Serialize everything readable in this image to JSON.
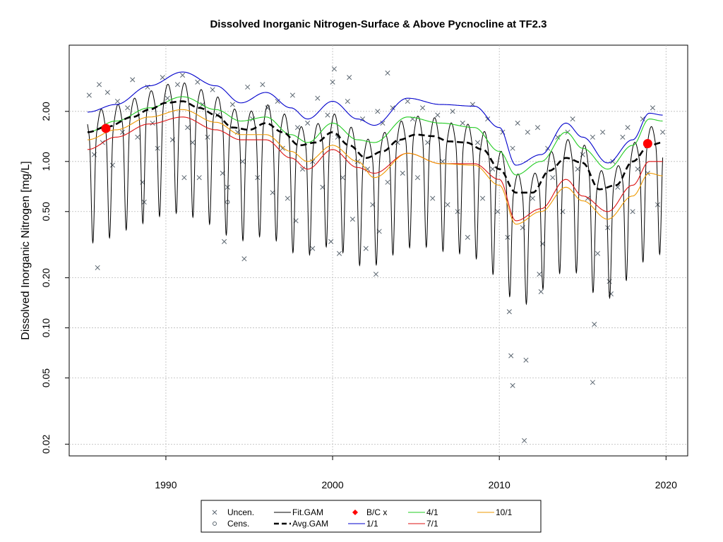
{
  "chart_data": {
    "type": "line",
    "title": "Dissolved Inorganic Nitrogen-Surface & Above Pycnocline at TF2.3",
    "xlabel": "",
    "ylabel": "Dissolved Inorganic Nitrogen [mg/L]",
    "y_scale": "log",
    "xlim": [
      1984.2,
      2021.3
    ],
    "ylim": [
      0.017,
      5.0
    ],
    "x_ticks": [
      1990,
      2000,
      2010,
      2020
    ],
    "x_tick_labels": [
      "1990",
      "2000",
      "2010",
      "2020"
    ],
    "y_ticks": [
      0.02,
      0.05,
      0.1,
      0.2,
      0.5,
      1.0,
      2.0
    ],
    "y_tick_labels": [
      "0.02",
      "0.05",
      "0.10",
      "0.20",
      "0.50",
      "1.00",
      "2.00"
    ],
    "grid": true,
    "legend_position": "bottom",
    "legend": {
      "columns": [
        [
          {
            "label": "Uncen.",
            "key": "uncen"
          },
          {
            "label": "Cens.",
            "key": "cens"
          }
        ],
        [
          {
            "label": "Fit.GAM",
            "key": "fit"
          },
          {
            "label": "Avg.GAM",
            "key": "avg"
          }
        ],
        [
          {
            "label": "B/C x",
            "key": "bc"
          },
          {
            "label": "1/1",
            "key": "d11"
          }
        ],
        [
          {
            "label": "4/1",
            "key": "d41"
          },
          {
            "label": "7/1",
            "key": "d71"
          }
        ],
        [
          {
            "label": "10/1",
            "key": "d101"
          }
        ]
      ]
    },
    "colors": {
      "points": "#5b6670",
      "fit": "#000000",
      "avg": "#000000",
      "bc": "#ff0000",
      "d11": "#0000cc",
      "d41": "#22cc22",
      "d71": "#dd1111",
      "d101": "#ee9900",
      "grid": "#bbbbbb"
    },
    "avg_gam": {
      "x": [
        1985.3,
        1986.5,
        1988,
        1989,
        1990,
        1991,
        1992,
        1993,
        1994,
        1995,
        1996,
        1997,
        1998,
        1999,
        2000,
        2001,
        2002,
        2003,
        2004,
        2005,
        2006,
        2007,
        2008,
        2009,
        2010,
        2011,
        2012,
        2013,
        2014,
        2015,
        2016,
        2017,
        2018,
        2019,
        2019.8
      ],
      "y": [
        1.5,
        1.62,
        1.85,
        2.05,
        2.25,
        2.3,
        2.1,
        1.9,
        1.6,
        1.55,
        1.7,
        1.5,
        1.25,
        1.3,
        1.5,
        1.25,
        1.05,
        1.15,
        1.35,
        1.45,
        1.42,
        1.32,
        1.3,
        1.18,
        0.9,
        0.65,
        0.65,
        0.88,
        1.05,
        0.98,
        0.68,
        0.72,
        1.0,
        1.25,
        1.3
      ]
    },
    "flow_series": [
      {
        "name": "1/1",
        "key": "d11",
        "x": [
          1985.3,
          1987,
          1989,
          1991,
          1993,
          1994.5,
          1996,
          1997.5,
          1998.5,
          2000,
          2001.5,
          2002.5,
          2004.5,
          2006.5,
          2008.5,
          2010,
          2011,
          2012.5,
          2014,
          2015,
          2016.5,
          2018,
          2019,
          2019.8
        ],
        "y": [
          1.98,
          2.2,
          2.85,
          3.45,
          2.85,
          2.25,
          2.6,
          2.1,
          1.8,
          2.3,
          1.8,
          1.65,
          2.4,
          2.2,
          2.15,
          1.6,
          0.95,
          1.1,
          1.7,
          1.4,
          0.98,
          1.35,
          1.95,
          1.9
        ]
      },
      {
        "name": "4/1",
        "key": "d41",
        "x": [
          1985.3,
          1987,
          1989,
          1991,
          1993,
          1994.5,
          1996,
          1997.5,
          1998.5,
          2000,
          2001.5,
          2002.5,
          2004.5,
          2006.5,
          2008.5,
          2010,
          2011,
          2012.5,
          2014,
          2015,
          2016.5,
          2018,
          2019,
          2019.8
        ],
        "y": [
          1.5,
          1.75,
          2.1,
          2.45,
          2.05,
          1.75,
          1.85,
          1.45,
          1.3,
          1.7,
          1.35,
          1.3,
          1.85,
          1.7,
          1.6,
          1.15,
          0.83,
          1.0,
          1.5,
          1.2,
          0.9,
          1.25,
          1.8,
          1.75
        ]
      },
      {
        "name": "7/1",
        "key": "d71",
        "x": [
          1985.3,
          1987,
          1989,
          1991,
          1993,
          1994.5,
          1996,
          1997.5,
          1998.5,
          2000,
          2001.5,
          2002.5,
          2004.5,
          2006.5,
          2008.5,
          2010,
          2011,
          2012.5,
          2014,
          2015,
          2016.5,
          2018,
          2019,
          2019.8
        ],
        "y": [
          1.18,
          1.4,
          1.68,
          1.85,
          1.55,
          1.35,
          1.35,
          1.05,
          0.9,
          1.18,
          0.92,
          0.85,
          1.12,
          0.97,
          0.97,
          0.78,
          0.44,
          0.52,
          0.78,
          0.62,
          0.5,
          0.72,
          1.0,
          1.0
        ]
      },
      {
        "name": "10/1",
        "key": "d101",
        "x": [
          1985.3,
          1987,
          1989,
          1991,
          1993,
          1994.5,
          1996,
          1997.5,
          1998.5,
          2000,
          2001.5,
          2002.5,
          2004.5,
          2006.5,
          2008.5,
          2010,
          2011,
          2012.5,
          2014,
          2015,
          2016.5,
          2018,
          2019,
          2019.8
        ],
        "y": [
          1.35,
          1.55,
          1.85,
          2.05,
          1.72,
          1.45,
          1.45,
          1.15,
          1.0,
          1.25,
          1.0,
          0.8,
          1.12,
          0.97,
          0.95,
          0.72,
          0.42,
          0.5,
          0.7,
          0.58,
          0.45,
          0.62,
          0.85,
          0.82
        ]
      }
    ],
    "fit_gam": {
      "period": 1.0,
      "amplitude_log": 0.62,
      "phase_peak": 0.12,
      "baseline": "avg_gam"
    },
    "bc_points": {
      "x": [
        1986.4,
        2018.9
      ],
      "y": [
        1.58,
        1.28
      ]
    },
    "censored_points": {
      "x": [
        1993.7
      ],
      "y": [
        0.57
      ]
    },
    "uncensored_points": {
      "x": [
        1985.4,
        1985.7,
        1986.0,
        1986.2,
        1986.5,
        1986.8,
        1987.1,
        1987.4,
        1987.7,
        1988.0,
        1988.3,
        1988.6,
        1988.9,
        1989.2,
        1989.5,
        1989.8,
        1990.1,
        1990.4,
        1990.7,
        1991.0,
        1991.3,
        1991.6,
        1991.9,
        1992.2,
        1992.5,
        1992.8,
        1993.1,
        1993.4,
        1993.7,
        1994.0,
        1994.3,
        1994.6,
        1994.9,
        1995.2,
        1995.5,
        1995.8,
        1996.1,
        1996.4,
        1996.7,
        1997.0,
        1997.3,
        1997.6,
        1997.9,
        1998.2,
        1998.5,
        1998.8,
        1999.1,
        1999.4,
        1999.7,
        2000.0,
        2000.3,
        2000.6,
        2000.9,
        2001.2,
        2001.5,
        2001.8,
        2002.1,
        2002.4,
        2002.7,
        2003.0,
        2003.3,
        2003.6,
        2003.9,
        2004.2,
        2004.5,
        2004.8,
        2005.1,
        2005.4,
        2005.7,
        2006.0,
        2006.3,
        2006.6,
        2006.9,
        2007.2,
        2007.5,
        2007.8,
        2008.1,
        2008.4,
        2008.7,
        2009.0,
        2009.3,
        2009.6,
        2009.9,
        2010.2,
        2010.5,
        2010.8,
        2011.1,
        2011.4,
        2011.7,
        2012.0,
        2012.3,
        2012.6,
        2012.9,
        2013.2,
        2013.5,
        2013.8,
        2014.1,
        2014.4,
        2014.7,
        2015.0,
        2015.3,
        2015.6,
        2015.9,
        2016.2,
        2016.5,
        2016.8,
        2017.1,
        2017.4,
        2017.7,
        2018.0,
        2018.3,
        2018.6,
        2018.9,
        2019.2,
        2019.5,
        2019.8,
        1985.9,
        1988.7,
        1993.5,
        1994.7,
        1997.8,
        1998.8,
        1999.9,
        2000.4,
        2002.0,
        2002.6,
        2002.8,
        2010.6,
        2010.7,
        2010.8,
        2011.6,
        2011.5,
        2012.4,
        2012.5,
        2015.6,
        2015.7,
        2016.6,
        2016.7,
        2001.0,
        2003.3,
        1991.1,
        1992.0,
        2000.1
      ],
      "y": [
        2.5,
        1.1,
        2.9,
        1.3,
        2.6,
        0.95,
        2.3,
        1.5,
        2.1,
        3.1,
        1.4,
        0.75,
        2.8,
        1.7,
        1.2,
        3.2,
        2.4,
        1.35,
        2.9,
        3.3,
        1.6,
        1.3,
        3.0,
        2.2,
        1.4,
        2.7,
        1.9,
        0.85,
        0.7,
        2.2,
        1.5,
        1.0,
        2.8,
        1.8,
        0.8,
        2.9,
        2.1,
        0.65,
        2.3,
        1.2,
        0.6,
        2.5,
        1.6,
        0.9,
        1.7,
        1.0,
        2.4,
        0.7,
        1.9,
        3.0,
        1.4,
        0.8,
        2.3,
        0.45,
        1.0,
        1.8,
        0.9,
        0.55,
        2.0,
        1.7,
        0.75,
        2.1,
        1.3,
        0.85,
        2.3,
        1.8,
        0.8,
        2.1,
        1.3,
        0.6,
        1.9,
        1.0,
        0.55,
        2.0,
        0.5,
        1.7,
        0.35,
        2.2,
        1.3,
        0.6,
        1.8,
        0.9,
        0.5,
        1.5,
        0.35,
        1.2,
        1.7,
        0.4,
        1.5,
        0.6,
        1.6,
        0.32,
        1.2,
        0.8,
        1.4,
        0.5,
        1.5,
        1.8,
        0.9,
        1.1,
        0.6,
        1.4,
        0.28,
        1.5,
        0.4,
        1.0,
        0.7,
        1.4,
        1.6,
        0.5,
        0.9,
        1.8,
        0.85,
        2.1,
        0.55,
        1.5,
        0.23,
        0.57,
        0.33,
        0.26,
        0.44,
        0.3,
        0.33,
        0.28,
        0.3,
        0.21,
        0.38,
        0.125,
        0.068,
        0.045,
        0.064,
        0.021,
        0.21,
        0.165,
        0.047,
        0.105,
        0.19,
        0.16,
        3.2,
        3.4,
        0.8,
        0.8,
        3.6
      ]
    }
  }
}
